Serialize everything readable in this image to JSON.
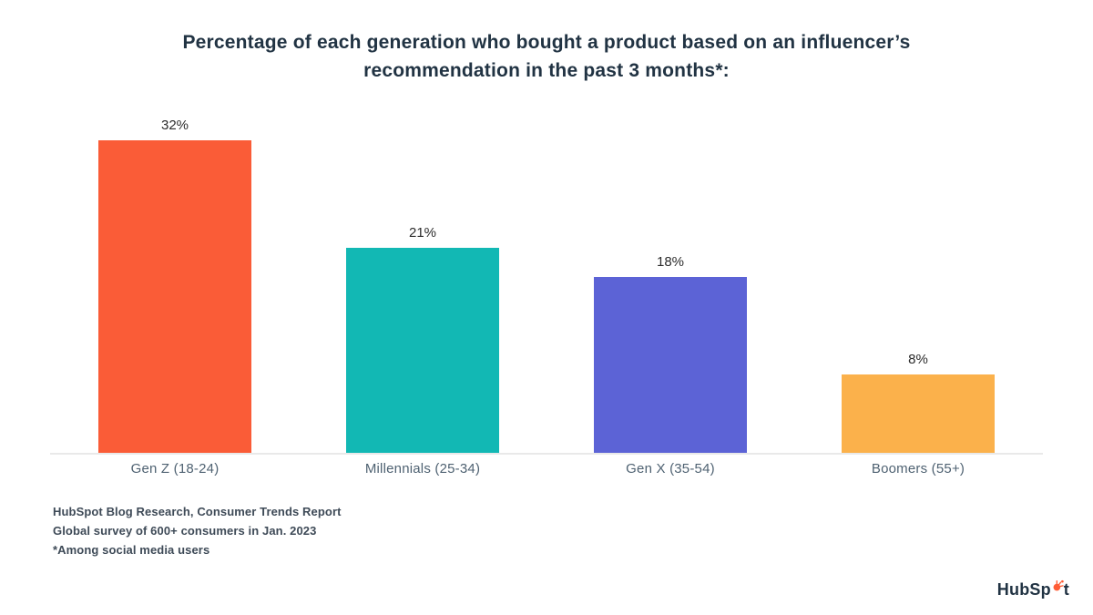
{
  "title": {
    "line1": "Percentage of each generation who bought a product based on an influencer’s",
    "line2": "recommendation in the past 3 months*:"
  },
  "chart_data": {
    "type": "bar",
    "title": "Percentage of each generation who bought a product based on an influencer’s recommendation in the past 3 months*:",
    "categories": [
      "Gen Z (18-24)",
      "Millennials (25-34)",
      "Gen X (35-54)",
      "Boomers (55+)"
    ],
    "values": [
      32,
      21,
      18,
      8
    ],
    "value_labels": [
      "32%",
      "21%",
      "18%",
      "8%"
    ],
    "colors": [
      "#FA5C37",
      "#12B8B4",
      "#5C63D6",
      "#FBB14B"
    ],
    "xlabel": "",
    "ylabel": "",
    "ylim": [
      0,
      36
    ],
    "grid": false,
    "legend": false,
    "data_labels_position": "above bars",
    "axis_line_color": "#e9e9e9"
  },
  "footnotes": [
    "HubSpot Blog Research, Consumer Trends Report",
    "Global survey of 600+ consumers in Jan. 2023",
    "*Among social media users"
  ],
  "logo": {
    "prefix": "HubSp",
    "suffix": "t",
    "sprocket_color": "#FF5C35",
    "text_color": "#213343"
  }
}
